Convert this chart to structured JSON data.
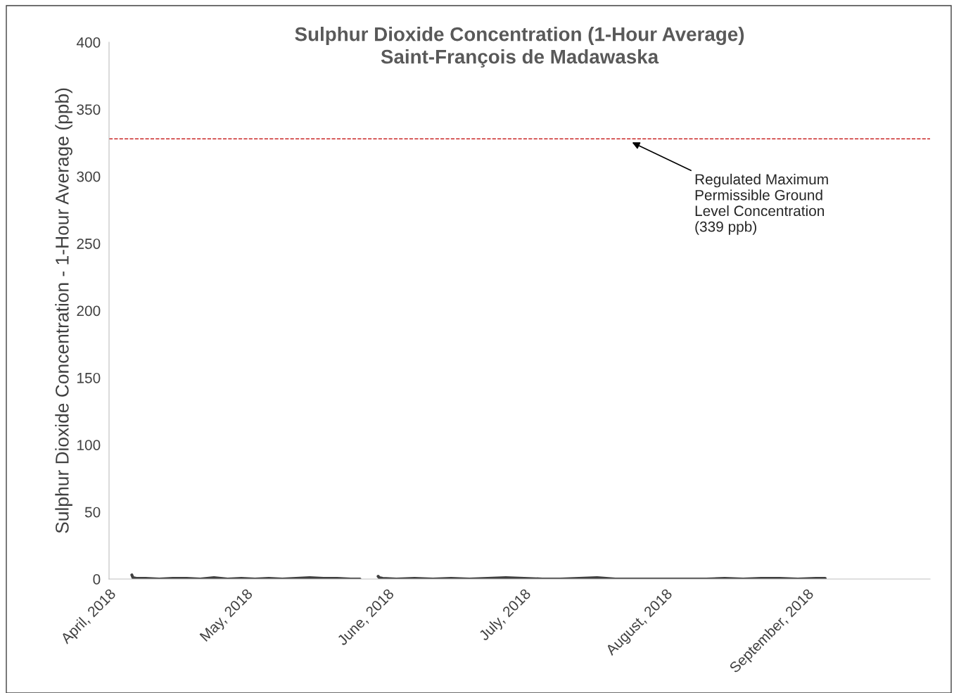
{
  "chart_data": {
    "type": "line",
    "title": "Sulphur Dioxide Concentration (1-Hour Average)\nSaint-François de Madawaska",
    "ylabel": "Sulphur Dioxide Concentration - 1-Hour Average (ppb)",
    "x": [
      "2018-04-06",
      "2018-04-06T06:00",
      "2018-04-07",
      "2018-04-09",
      "2018-04-12",
      "2018-04-15",
      "2018-04-18",
      "2018-04-21",
      "2018-04-24",
      "2018-04-27",
      "2018-04-30",
      "2018-05-03",
      "2018-05-06",
      "2018-05-09",
      "2018-05-12",
      "2018-05-15",
      "2018-05-18",
      "2018-05-21",
      "2018-05-24",
      "2018-05-26",
      "2018-05-28",
      "2018-05-30",
      "2018-05-30T06:00",
      "2018-05-31",
      "2018-06-03",
      "2018-06-07",
      "2018-06-11",
      "2018-06-15",
      "2018-06-19",
      "2018-06-23",
      "2018-06-27",
      "2018-07-01",
      "2018-07-05",
      "2018-07-09",
      "2018-07-13",
      "2018-07-17",
      "2018-07-21",
      "2018-07-25",
      "2018-07-29",
      "2018-08-02",
      "2018-08-06",
      "2018-08-10",
      "2018-08-14",
      "2018-08-18",
      "2018-08-22",
      "2018-08-26",
      "2018-08-30",
      "2018-09-03",
      "2018-09-05"
    ],
    "series": [
      {
        "color": "#404040",
        "values": [
          3,
          1,
          0.5,
          0.5,
          0,
          0.5,
          0.5,
          0,
          1,
          0,
          0.5,
          0,
          0.5,
          0,
          0.5,
          1,
          0.5,
          0.5,
          0,
          0,
          null,
          2,
          1,
          0.5,
          0,
          0.5,
          0,
          0.5,
          0,
          0.5,
          1,
          0.5,
          0,
          0,
          0.5,
          1,
          0,
          0,
          0,
          0,
          0,
          0,
          0.5,
          0,
          0.5,
          0.5,
          0,
          0.5,
          0.5
        ]
      }
    ],
    "xlim": [
      "2018-04-01",
      "2018-09-28"
    ],
    "xticks": [
      {
        "value": "2018-04-01",
        "label": "April, 2018"
      },
      {
        "value": "2018-05-01",
        "label": "May, 2018"
      },
      {
        "value": "2018-06-01",
        "label": "June, 2018"
      },
      {
        "value": "2018-07-01",
        "label": "July, 2018"
      },
      {
        "value": "2018-08-01",
        "label": "August, 2018"
      },
      {
        "value": "2018-09-01",
        "label": "September, 2018"
      }
    ],
    "ylim": [
      0,
      400
    ],
    "yticks": [
      0,
      50,
      100,
      150,
      200,
      250,
      300,
      350,
      400
    ],
    "ref_lines": [
      {
        "axis": "y",
        "value": 328,
        "color": "#c00000",
        "line_style": "dashed"
      }
    ],
    "annotations": [
      "Regulated Maximum\nPermissible Ground\nLevel Concentration\n(339 ppb)"
    ],
    "grid": false,
    "legend": false
  }
}
